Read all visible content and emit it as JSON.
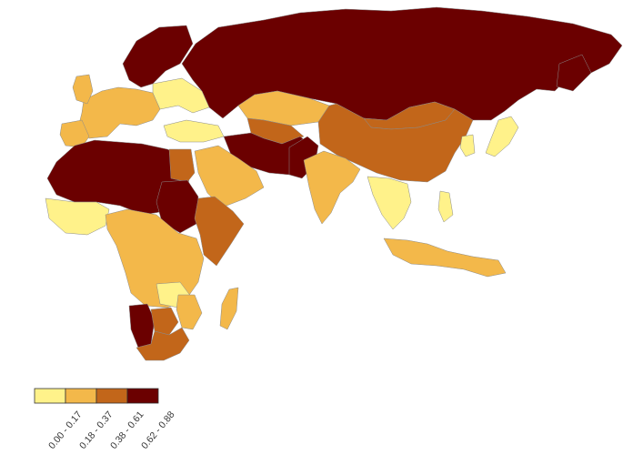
{
  "legend": {
    "classes": [
      {
        "label": "0.00 - 0.17",
        "color": "#FFF28A"
      },
      {
        "label": "0.18 - 0.37",
        "color": "#F3B84A"
      },
      {
        "label": "0.38 - 0.61",
        "color": "#C2661A"
      },
      {
        "label": "0.62 - 0.88",
        "color": "#6B0000"
      }
    ]
  },
  "map": {
    "region": "Eurasia and Africa",
    "classification": [
      {
        "region": "Russia",
        "class": 3
      },
      {
        "region": "Scandinavia",
        "class": 3
      },
      {
        "region": "Northern Africa (Sahara)",
        "class": 3
      },
      {
        "region": "Sudan",
        "class": 3
      },
      {
        "region": "Namibia",
        "class": 3
      },
      {
        "region": "Iran and Afghanistan",
        "class": 3
      },
      {
        "region": "Kazakhstan",
        "class": 1
      },
      {
        "region": "China",
        "class": 2
      },
      {
        "region": "Mongolia",
        "class": 2
      },
      {
        "region": "India",
        "class": 1
      },
      {
        "region": "Arabian Peninsula",
        "class": 1
      },
      {
        "region": "Turkey",
        "class": 0
      },
      {
        "region": "Japan",
        "class": 0
      },
      {
        "region": "Southeast Asia",
        "class": 0
      },
      {
        "region": "Indonesia",
        "class": 1
      },
      {
        "region": "Horn of Africa",
        "class": 2
      },
      {
        "region": "Central Africa",
        "class": 1
      },
      {
        "region": "South Africa",
        "class": 2
      },
      {
        "region": "Madagascar",
        "class": 1
      },
      {
        "region": "Western Europe",
        "class": 1
      }
    ]
  }
}
